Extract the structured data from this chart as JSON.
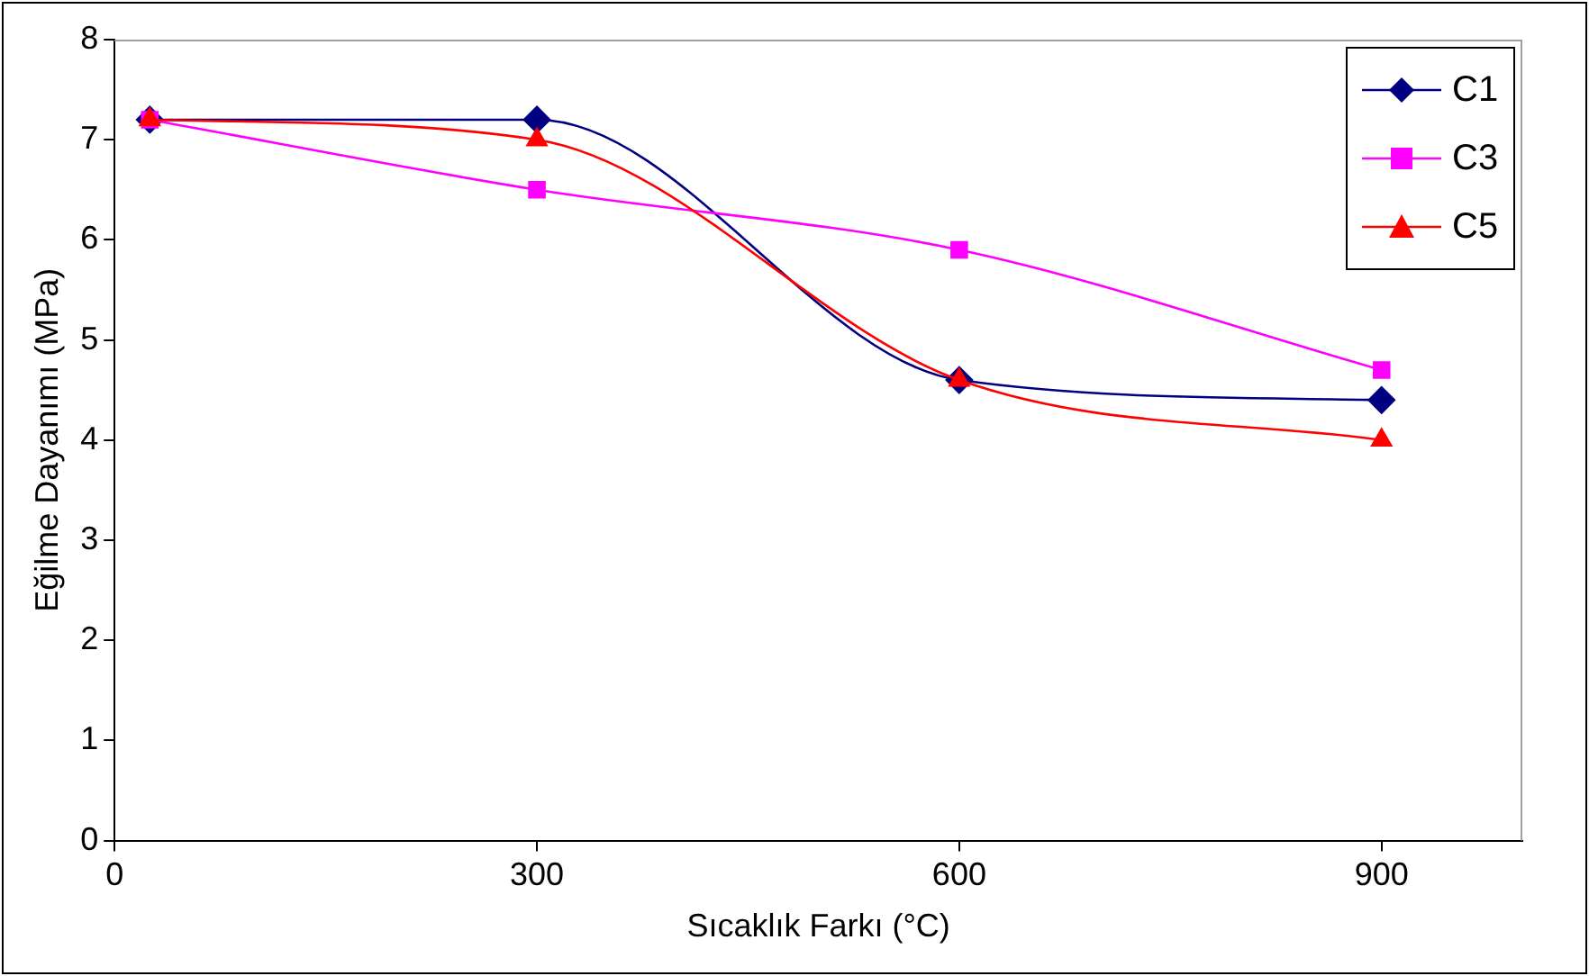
{
  "chart_data": {
    "type": "line",
    "xlabel": "Sıcaklık Farkı (°C)",
    "ylabel": "Eğilme Dayanımı (MPa)",
    "x": [
      25,
      300,
      600,
      900
    ],
    "xlim": [
      0,
      1000
    ],
    "xticks": [
      0,
      300,
      600,
      900
    ],
    "ylim": [
      0,
      8
    ],
    "yticks": [
      0,
      1,
      2,
      3,
      4,
      5,
      6,
      7,
      8
    ],
    "grid": false,
    "legend": "top right",
    "series": [
      {
        "name": "C1",
        "color": "#000080",
        "marker": "diamond",
        "values": [
          7.2,
          7.2,
          4.6,
          4.4
        ]
      },
      {
        "name": "C3",
        "color": "#ff00ff",
        "marker": "square",
        "values": [
          7.2,
          6.5,
          5.9,
          4.7
        ]
      },
      {
        "name": "C5",
        "color": "#ff0000",
        "marker": "triangle",
        "values": [
          7.2,
          7.0,
          4.6,
          4.0
        ]
      }
    ]
  }
}
